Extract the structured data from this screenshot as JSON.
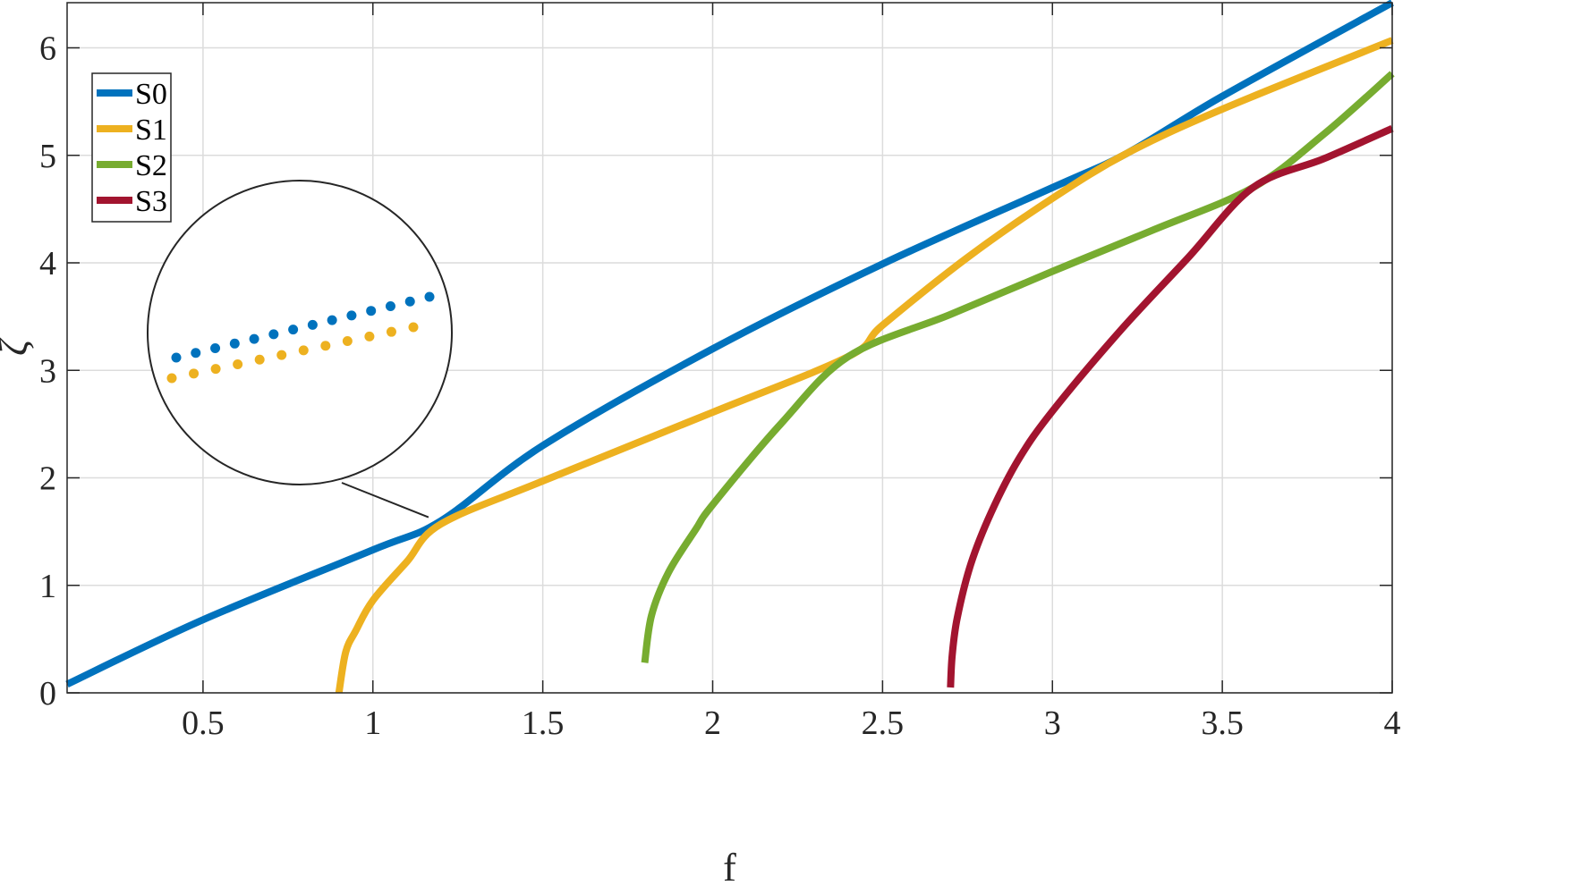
{
  "chart_data": {
    "type": "line",
    "title": "",
    "xlabel": "f",
    "ylabel": "ζ",
    "xlim": [
      0.1,
      4
    ],
    "ylim": [
      0,
      6.42
    ],
    "x_ticks": [
      0.5,
      1,
      1.5,
      2,
      2.5,
      3,
      3.5,
      4
    ],
    "x_tick_labels": [
      "0.5",
      "1",
      "1.5",
      "2",
      "2.5",
      "3",
      "3.5",
      "4"
    ],
    "y_ticks": [
      0,
      1,
      2,
      3,
      4,
      5,
      6
    ],
    "y_tick_labels": [
      "0",
      "1",
      "2",
      "3",
      "4",
      "5",
      "6"
    ],
    "grid": true,
    "legend_position": "top-left",
    "series": [
      {
        "name": "S0",
        "color": "#0072BD",
        "x": [
          0.1,
          0.5,
          1.0,
          1.2,
          1.5,
          2.0,
          2.5,
          3.0,
          3.22,
          3.5,
          4.0
        ],
        "y": [
          0.08,
          0.68,
          1.33,
          1.6,
          2.3,
          3.2,
          3.99,
          4.7,
          5.02,
          5.55,
          6.42
        ]
      },
      {
        "name": "S1",
        "color": "#EDB120",
        "x": [
          0.9,
          0.92,
          0.95,
          1.0,
          1.1,
          1.2,
          1.5,
          2.0,
          2.4,
          2.5,
          2.75,
          3.0,
          3.22,
          3.5,
          4.0
        ],
        "y": [
          0.0,
          0.38,
          0.58,
          0.86,
          1.22,
          1.57,
          1.97,
          2.61,
          3.13,
          3.42,
          4.05,
          4.6,
          5.02,
          5.43,
          6.07
        ]
      },
      {
        "name": "S2",
        "color": "#77AC30",
        "x": [
          1.8,
          1.82,
          1.87,
          1.95,
          2.0,
          2.2,
          2.4,
          2.7,
          3.0,
          3.3,
          3.59,
          3.8,
          4.0
        ],
        "y": [
          0.28,
          0.72,
          1.12,
          1.52,
          1.75,
          2.5,
          3.13,
          3.52,
          3.92,
          4.31,
          4.7,
          5.2,
          5.76
        ]
      },
      {
        "name": "S3",
        "color": "#A2142F",
        "x": [
          2.7,
          2.705,
          2.72,
          2.76,
          2.82,
          2.9,
          3.0,
          3.2,
          3.4,
          3.59,
          3.8,
          4.0
        ],
        "y": [
          0.05,
          0.35,
          0.7,
          1.2,
          1.68,
          2.17,
          2.62,
          3.37,
          4.05,
          4.7,
          4.97,
          5.25
        ]
      }
    ],
    "inset": {
      "shape": "circle",
      "callout_point": {
        "x": 1.19,
        "y": 1.6
      },
      "series_points": [
        {
          "name": "S0",
          "count": 14
        },
        {
          "name": "S1",
          "count": 12
        }
      ]
    }
  }
}
